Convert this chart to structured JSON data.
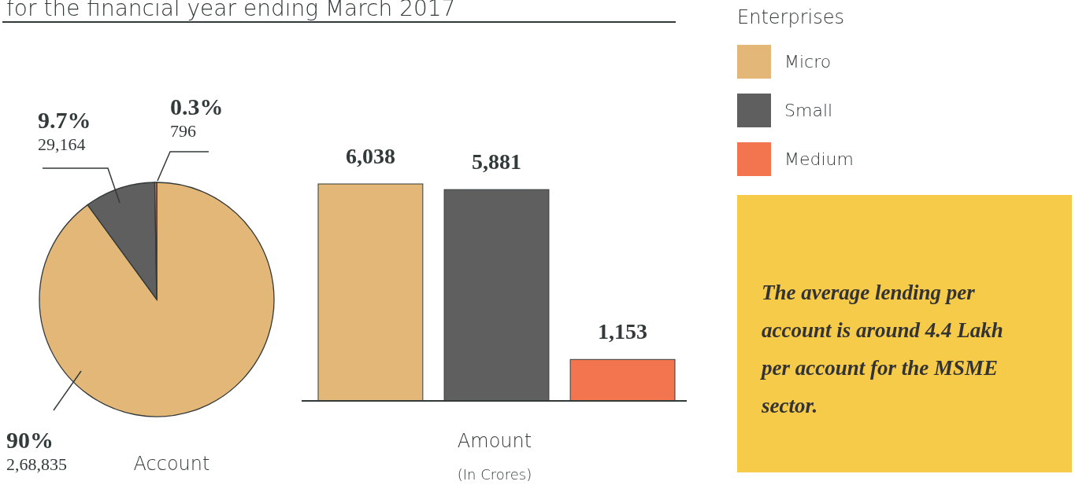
{
  "chart_data": [
    {
      "type": "pie",
      "title": "for the financial year ending March 2017",
      "xlabel": "Account",
      "categories": [
        "Micro",
        "Small",
        "Medium"
      ],
      "values": [
        268835,
        29164,
        796
      ],
      "colors": [
        "#e3b778",
        "#5e5f5e",
        "#f2754f"
      ],
      "value_labels": [
        "2,68,835",
        "29,164",
        "796"
      ],
      "annotations": [
        "90%",
        "9.7%",
        "0.3%"
      ],
      "legend": "right",
      "legend_title": "Enterprises"
    },
    {
      "type": "bar",
      "xlabel": "Amount",
      "categories": [
        null,
        null,
        null
      ],
      "values": [
        6038,
        5881,
        1153
      ],
      "colors": [
        "#e3b778",
        "#5e5f5e",
        "#f2754f"
      ],
      "value_labels": [
        "6,038",
        "5,881",
        "1,153"
      ],
      "annotations": [
        "(In Crores)"
      ]
    },
    {
      "type": "other",
      "annotations": [
        "The average lending per account is around 4.4 Lakh per account for the MSME sector."
      ]
    }
  ]
}
